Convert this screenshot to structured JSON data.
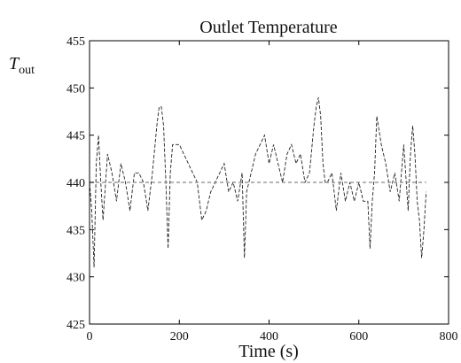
{
  "chart_data": {
    "type": "line",
    "title": "Outlet Temperature",
    "xlabel": "Time (s)",
    "ylabel": {
      "symbol": "T",
      "subscript": "out"
    },
    "xlim": [
      0,
      800
    ],
    "ylim": [
      425,
      455
    ],
    "xticks": [
      0,
      200,
      400,
      600,
      800
    ],
    "yticks": [
      425,
      430,
      435,
      440,
      445,
      450,
      455
    ],
    "grid": false,
    "series": [
      {
        "style": "dashed",
        "color": "#222222",
        "x": [
          0,
          5,
          10,
          15,
          20,
          25,
          30,
          40,
          50,
          60,
          70,
          80,
          90,
          100,
          110,
          120,
          130,
          140,
          150,
          155,
          160,
          165,
          170,
          175,
          180,
          185,
          190,
          200,
          210,
          220,
          230,
          240,
          250,
          260,
          270,
          280,
          290,
          300,
          310,
          320,
          330,
          340,
          345,
          350,
          360,
          370,
          380,
          390,
          400,
          410,
          420,
          430,
          440,
          450,
          460,
          470,
          480,
          490,
          500,
          505,
          510,
          515,
          520,
          525,
          530,
          540,
          550,
          560,
          570,
          580,
          590,
          600,
          610,
          620,
          625,
          630,
          635,
          640,
          650,
          660,
          670,
          680,
          690,
          700,
          710,
          715,
          720,
          725,
          730,
          735,
          740,
          745,
          750
        ],
        "y": [
          440,
          437,
          431,
          442,
          445,
          440,
          436,
          443,
          441,
          438,
          442,
          440,
          437,
          441,
          441,
          440,
          437,
          441,
          446,
          448,
          448,
          446,
          440,
          433,
          441,
          444,
          444,
          444,
          443,
          442,
          441,
          440,
          436,
          437,
          439,
          440,
          441,
          442,
          439,
          440,
          438,
          441,
          432,
          439,
          441,
          443,
          444,
          445,
          442,
          444,
          442,
          440,
          443,
          444,
          442,
          443,
          440,
          441,
          446,
          448,
          449,
          447,
          442,
          440,
          440,
          441,
          437,
          441,
          438,
          440,
          438,
          440,
          438,
          438,
          433,
          438,
          441,
          447,
          444,
          442,
          439,
          441,
          438,
          444,
          437,
          443,
          446,
          443,
          438,
          436,
          432,
          435,
          439
        ]
      },
      {
        "style": "dashed",
        "color": "#888888",
        "x": [
          0,
          750
        ],
        "y": [
          440,
          440
        ]
      }
    ]
  }
}
